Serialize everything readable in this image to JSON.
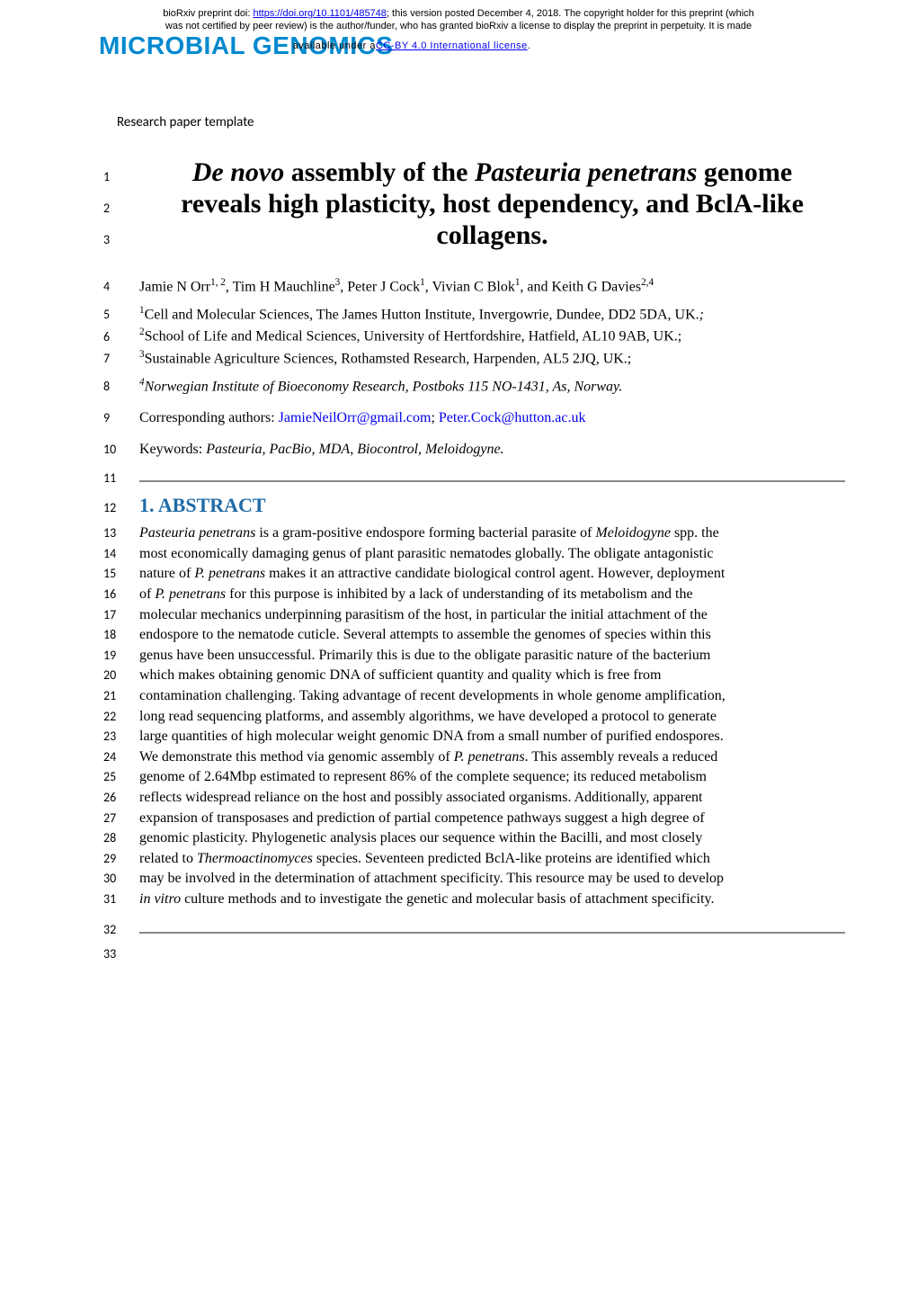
{
  "preprint": {
    "line1_prefix": "bioRxiv preprint doi: ",
    "doi_url": "https://doi.org/10.1101/485748",
    "line1_suffix": "; this version posted December 4, 2018. The copyright holder for this preprint (which",
    "line2": "was not certified by peer review) is the author/funder, who has granted bioRxiv a license to display the preprint in perpetuity. It is made",
    "license_prefix": "available under a",
    "license_text": "CC-BY 4.0 International license",
    "license_suffix": "."
  },
  "journal": "MICROBIAL GENOMICS",
  "template_label": "Research paper template",
  "title": {
    "line1_italic": "De novo",
    "line1_rest": " assembly of the ",
    "line1_italic2": "Pasteuria penetrans",
    "line1_end": " genome",
    "line2": "reveals high plasticity, host dependency, and BclA-like",
    "line3": "collagens."
  },
  "authors": "Jamie N Orr<sup>1, 2</sup>, Tim H Mauchline<sup>3</sup>, Peter J Cock<sup>1</sup>, Vivian C Blok<sup>1</sup>, and Keith G Davies<sup>2,4</sup>",
  "affiliations": {
    "a1": "<sup>1</sup>Cell and Molecular Sciences, The James Hutton Institute, Invergowrie, Dundee, DD2 5DA, UK.<i>;</i>",
    "a2": "<sup>2</sup>School of Life and Medical Sciences, University of Hertfordshire, Hatfield, AL10 9AB, UK.;",
    "a3": "<sup>3</sup>Sustainable Agriculture Sciences, Rothamsted Research, Harpenden, AL5 2JQ, UK.;",
    "a4": "<sup>4</sup>Norwegian Institute of Bioeconomy Research, Postboks 115 NO-1431, As, Norway."
  },
  "corresponding": {
    "label": "Corresponding authors: ",
    "email1": "JamieNeilOrr@gmail.com",
    "sep": "; ",
    "email2": "Peter.Cock@hutton.ac.uk"
  },
  "keywords": {
    "label": "Keywords: ",
    "text": "Pasteuria, PacBio, MDA, Biocontrol, Meloidogyne."
  },
  "section1": "1.  ABSTRACT",
  "abstract": {
    "l13": "<i>Pasteuria penetrans</i> is a gram-positive endospore forming bacterial parasite of <i>Meloidogyne</i> spp. the",
    "l14": "most economically damaging genus of plant parasitic nematodes globally. The obligate antagonistic",
    "l15": "nature of <i>P. penetrans</i> makes it an attractive candidate biological control agent. However, deployment",
    "l16": "of <i>P. penetrans</i> for this purpose is inhibited by a lack of understanding of its metabolism and the",
    "l17": "molecular mechanics underpinning parasitism of the host, in particular the initial attachment of the",
    "l18": "endospore to the nematode cuticle. Several attempts to assemble the genomes of species within this",
    "l19": "genus have been unsuccessful. Primarily this is due to the obligate parasitic nature of the bacterium",
    "l20": "which makes obtaining genomic DNA of sufficient quantity and quality which is free from",
    "l21": "contamination challenging. Taking advantage of recent developments in whole genome amplification,",
    "l22": "long read sequencing platforms, and assembly algorithms, we have developed a protocol to generate",
    "l23": "large quantities of high molecular weight genomic DNA from a small number of purified endospores.",
    "l24": "We demonstrate this method via genomic assembly of <i>P. penetrans</i>.  This assembly reveals a reduced",
    "l25": "genome of 2.64Mbp estimated to represent 86% of the complete sequence; its reduced metabolism",
    "l26": "reflects widespread reliance on the host and possibly associated organisms. Additionally, apparent",
    "l27": "expansion of transposases and prediction of partial competence pathways suggest a high degree of",
    "l28": "genomic plasticity. Phylogenetic analysis places our sequence within the Bacilli, and most closely",
    "l29": "related to <i>Thermoactinomyces</i> species. Seventeen predicted BclA-like proteins are identified which",
    "l30": "may be involved in the determination of attachment specificity. This resource may be used to develop",
    "l31": "<i>in vitro</i> culture methods and to investigate the genetic and molecular basis of attachment specificity."
  },
  "line_numbers": {
    "n1": "1",
    "n2": "2",
    "n3": "3",
    "n4": "4",
    "n5": "5",
    "n6": "6",
    "n7": "7",
    "n8": "8",
    "n9": "9",
    "n10": "10",
    "n11": "11",
    "n12": "12",
    "n13": "13",
    "n14": "14",
    "n15": "15",
    "n16": "16",
    "n17": "17",
    "n18": "18",
    "n19": "19",
    "n20": "20",
    "n21": "21",
    "n22": "22",
    "n23": "23",
    "n24": "24",
    "n25": "25",
    "n26": "26",
    "n27": "27",
    "n28": "28",
    "n29": "29",
    "n30": "30",
    "n31": "31",
    "n32": "32",
    "n33": "33"
  },
  "colors": {
    "link": "#0000ee",
    "journal": "#0089cf",
    "heading": "#1f6ba7",
    "hr": "#888888",
    "text": "#000000",
    "background": "#ffffff"
  },
  "typography": {
    "body_font": "Times New Roman",
    "ui_font": "Calibri",
    "title_fontsize": 30,
    "body_fontsize": 16,
    "heading_fontsize": 22,
    "linenum_fontsize": 14,
    "preprint_fontsize": 11,
    "journal_fontsize": 28
  }
}
